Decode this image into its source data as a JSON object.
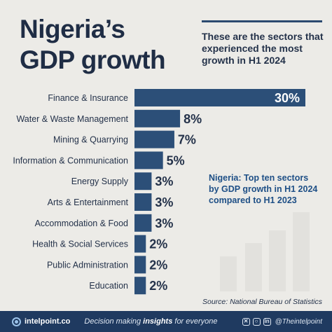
{
  "header": {
    "title_line1": "Nigeria’s",
    "title_line2": "GDP growth",
    "subtitle": "These are the sectors that experienced the most growth in H1 2024"
  },
  "note": "Nigeria: Top ten sectors by GDP growth in H1 2024 compared to H1 2023",
  "source": "Source: National Bureau of Statistics",
  "footer": {
    "brand": "intelpoint.co",
    "tagline_pre": "Decision making ",
    "tagline_bold": "insights",
    "tagline_post": " for everyone",
    "handle": "@Theintelpoint",
    "icons": [
      "x-icon",
      "instagram-icon",
      "linkedin-icon"
    ]
  },
  "colors": {
    "bar": "#2c4f78",
    "background": "#ecebe7",
    "footer": "#1f3a60",
    "decor_bars": "#e2e1dd"
  },
  "chart_data": {
    "type": "bar",
    "orientation": "horizontal",
    "categories": [
      "Finance & Insurance",
      "Water & Waste Management",
      "Mining & Quarrying",
      "Information & Communication",
      "Energy Supply",
      "Arts & Entertainment",
      "Accommodation & Food",
      "Health & Social Services",
      "Public Administration",
      "Education"
    ],
    "values": [
      30,
      8,
      7,
      5,
      3,
      3,
      3,
      2,
      2,
      2
    ],
    "value_labels": [
      "30%",
      "8%",
      "7%",
      "5%",
      "3%",
      "3%",
      "3%",
      "2%",
      "2%",
      "2%"
    ],
    "unit": "%",
    "xlim": [
      0,
      30
    ],
    "grid": false,
    "legend": "none"
  }
}
